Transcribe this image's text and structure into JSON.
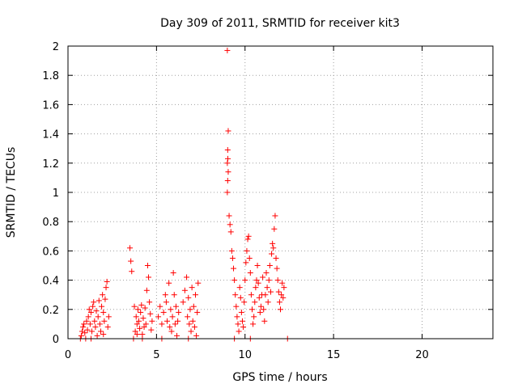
{
  "chart_data": {
    "type": "scatter",
    "title": "Day 309 of 2011, SRMTID for receiver kit3",
    "xlabel": "GPS time / hours",
    "ylabel": "SRMTID / TECUs",
    "xlim": [
      0,
      24
    ],
    "ylim": [
      0,
      2
    ],
    "xticks": [
      0,
      5,
      10,
      15,
      20
    ],
    "xtick_labels": [
      "0",
      "5",
      "10",
      "15",
      "20"
    ],
    "yticks": [
      0,
      0.2,
      0.4,
      0.6,
      0.8,
      1,
      1.2,
      1.4,
      1.6,
      1.8,
      2
    ],
    "ytick_labels": [
      "0",
      "0.2",
      "0.4",
      "0.6",
      "0.8",
      "1",
      "1.2",
      "1.4",
      "1.6",
      "1.8",
      "2"
    ],
    "grid": true,
    "marker": "+",
    "marker_color": "#ff0000",
    "series": [
      {
        "name": "SRMTID",
        "points": [
          [
            0.7,
            0.0
          ],
          [
            0.75,
            0.02
          ],
          [
            0.8,
            0.05
          ],
          [
            0.85,
            0.08
          ],
          [
            0.9,
            0.1
          ],
          [
            0.95,
            0.04
          ],
          [
            1.0,
            0.0
          ],
          [
            1.05,
            0.12
          ],
          [
            1.1,
            0.06
          ],
          [
            1.15,
            0.15
          ],
          [
            1.2,
            0.2
          ],
          [
            1.25,
            0.1
          ],
          [
            1.3,
            0.18
          ],
          [
            1.35,
            0.05
          ],
          [
            1.4,
            0.22
          ],
          [
            1.45,
            0.25
          ],
          [
            1.5,
            0.12
          ],
          [
            1.55,
            0.08
          ],
          [
            1.6,
            0.19
          ],
          [
            1.65,
            0.02
          ],
          [
            1.7,
            0.15
          ],
          [
            1.75,
            0.26
          ],
          [
            1.8,
            0.1
          ],
          [
            1.85,
            0.05
          ],
          [
            1.9,
            0.22
          ],
          [
            1.95,
            0.3
          ],
          [
            2.0,
            0.18
          ],
          [
            2.05,
            0.12
          ],
          [
            2.1,
            0.27
          ],
          [
            2.15,
            0.35
          ],
          [
            2.2,
            0.39
          ],
          [
            2.25,
            0.08
          ],
          [
            2.3,
            0.15
          ],
          [
            1.3,
            0.0
          ],
          [
            2.0,
            0.03
          ],
          [
            3.5,
            0.62
          ],
          [
            3.55,
            0.53
          ],
          [
            3.6,
            0.46
          ],
          [
            3.7,
            0.0
          ],
          [
            3.75,
            0.22
          ],
          [
            3.8,
            0.05
          ],
          [
            3.85,
            0.15
          ],
          [
            3.9,
            0.1
          ],
          [
            3.95,
            0.2
          ],
          [
            4.0,
            0.12
          ],
          [
            4.05,
            0.07
          ],
          [
            4.1,
            0.18
          ],
          [
            4.15,
            0.23
          ],
          [
            4.2,
            0.03
          ],
          [
            4.25,
            0.14
          ],
          [
            4.3,
            0.08
          ],
          [
            4.35,
            0.21
          ],
          [
            4.4,
            0.1
          ],
          [
            4.45,
            0.33
          ],
          [
            4.5,
            0.5
          ],
          [
            4.55,
            0.42
          ],
          [
            4.6,
            0.25
          ],
          [
            4.65,
            0.17
          ],
          [
            4.7,
            0.06
          ],
          [
            4.75,
            0.12
          ],
          [
            4.2,
            0.0
          ],
          [
            3.9,
            0.03
          ],
          [
            5.1,
            0.15
          ],
          [
            5.2,
            0.22
          ],
          [
            5.3,
            0.1
          ],
          [
            5.4,
            0.18
          ],
          [
            5.5,
            0.3
          ],
          [
            5.55,
            0.25
          ],
          [
            5.6,
            0.12
          ],
          [
            5.7,
            0.38
          ],
          [
            5.75,
            0.08
          ],
          [
            5.8,
            0.2
          ],
          [
            5.85,
            0.05
          ],
          [
            5.9,
            0.15
          ],
          [
            5.95,
            0.45
          ],
          [
            6.0,
            0.3
          ],
          [
            6.05,
            0.1
          ],
          [
            6.1,
            0.22
          ],
          [
            6.15,
            0.02
          ],
          [
            6.2,
            0.12
          ],
          [
            6.25,
            0.18
          ],
          [
            5.3,
            0.0
          ],
          [
            6.5,
            0.25
          ],
          [
            6.6,
            0.33
          ],
          [
            6.7,
            0.42
          ],
          [
            6.75,
            0.15
          ],
          [
            6.8,
            0.28
          ],
          [
            6.85,
            0.1
          ],
          [
            6.9,
            0.2
          ],
          [
            6.95,
            0.05
          ],
          [
            7.0,
            0.35
          ],
          [
            7.05,
            0.12
          ],
          [
            7.1,
            0.22
          ],
          [
            7.15,
            0.08
          ],
          [
            7.2,
            0.3
          ],
          [
            7.25,
            0.02
          ],
          [
            7.3,
            0.18
          ],
          [
            7.35,
            0.38
          ],
          [
            6.8,
            0.0
          ],
          [
            9.0,
            1.97
          ],
          [
            9.05,
            1.42
          ],
          [
            9.02,
            1.29
          ],
          [
            9.03,
            1.23
          ],
          [
            9.0,
            1.2
          ],
          [
            9.05,
            1.14
          ],
          [
            9.02,
            1.08
          ],
          [
            9.0,
            1.0
          ],
          [
            9.1,
            0.84
          ],
          [
            9.15,
            0.78
          ],
          [
            9.2,
            0.73
          ],
          [
            9.25,
            0.6
          ],
          [
            9.3,
            0.55
          ],
          [
            9.35,
            0.48
          ],
          [
            9.4,
            0.4
          ],
          [
            9.45,
            0.3
          ],
          [
            9.5,
            0.22
          ],
          [
            9.55,
            0.15
          ],
          [
            9.6,
            0.1
          ],
          [
            9.65,
            0.05
          ],
          [
            9.7,
            0.35
          ],
          [
            9.75,
            0.28
          ],
          [
            9.8,
            0.18
          ],
          [
            9.85,
            0.12
          ],
          [
            9.9,
            0.08
          ],
          [
            9.95,
            0.25
          ],
          [
            10.0,
            0.4
          ],
          [
            10.05,
            0.52
          ],
          [
            10.1,
            0.6
          ],
          [
            10.15,
            0.68
          ],
          [
            10.2,
            0.7
          ],
          [
            10.25,
            0.55
          ],
          [
            10.3,
            0.45
          ],
          [
            10.35,
            0.3
          ],
          [
            10.4,
            0.2
          ],
          [
            10.45,
            0.1
          ],
          [
            10.5,
            0.15
          ],
          [
            10.55,
            0.25
          ],
          [
            10.6,
            0.35
          ],
          [
            10.65,
            0.4
          ],
          [
            10.7,
            0.5
          ],
          [
            10.75,
            0.38
          ],
          [
            10.8,
            0.28
          ],
          [
            10.85,
            0.18
          ],
          [
            10.9,
            0.22
          ],
          [
            10.95,
            0.3
          ],
          [
            11.0,
            0.42
          ],
          [
            11.05,
            0.2
          ],
          [
            11.1,
            0.12
          ],
          [
            11.15,
            0.3
          ],
          [
            11.2,
            0.45
          ],
          [
            11.25,
            0.35
          ],
          [
            11.3,
            0.25
          ],
          [
            11.35,
            0.4
          ],
          [
            11.4,
            0.5
          ],
          [
            11.45,
            0.32
          ],
          [
            11.5,
            0.58
          ],
          [
            11.55,
            0.65
          ],
          [
            11.6,
            0.62
          ],
          [
            11.65,
            0.75
          ],
          [
            11.7,
            0.84
          ],
          [
            11.75,
            0.55
          ],
          [
            11.8,
            0.48
          ],
          [
            11.85,
            0.4
          ],
          [
            11.9,
            0.32
          ],
          [
            11.95,
            0.25
          ],
          [
            12.0,
            0.2
          ],
          [
            12.05,
            0.3
          ],
          [
            12.1,
            0.38
          ],
          [
            12.15,
            0.28
          ],
          [
            12.2,
            0.35
          ],
          [
            12.4,
            0.0
          ],
          [
            9.4,
            0.0
          ],
          [
            10.3,
            0.0
          ]
        ]
      }
    ]
  }
}
